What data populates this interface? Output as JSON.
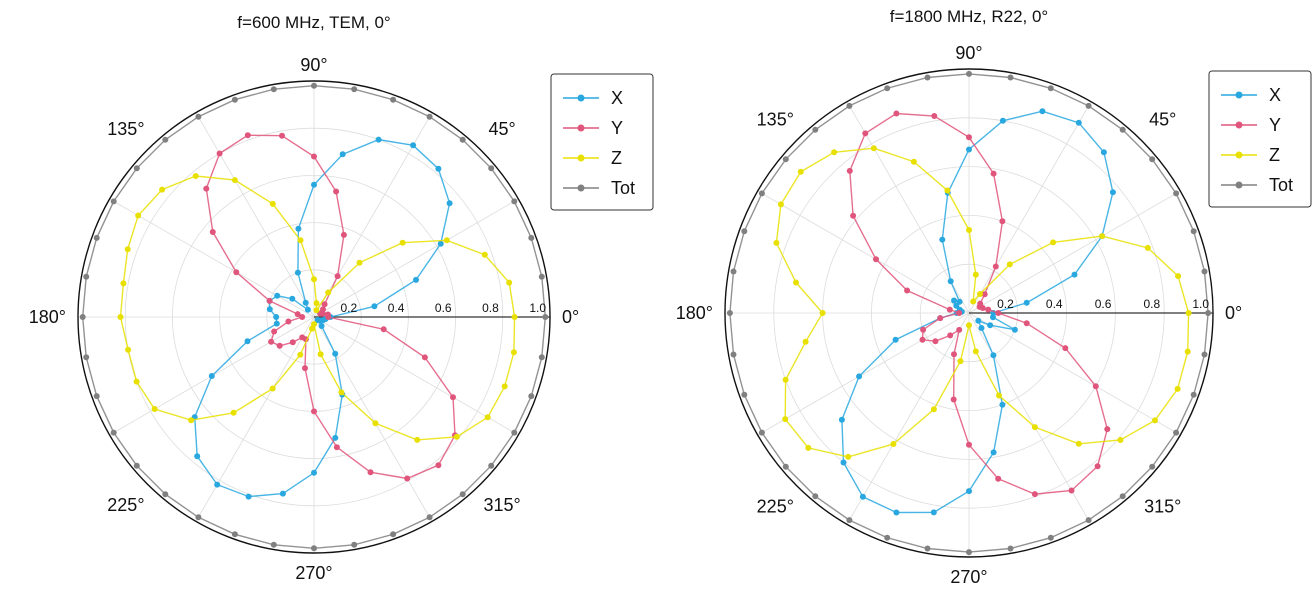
{
  "chart_data": [
    {
      "type": "polar-line",
      "title": "f=600 MHz, TEM, 0°",
      "theta_unit": "deg",
      "angle_ticks": [
        "0°",
        "45°",
        "90°",
        "135°",
        "180°",
        "225°",
        "270°",
        "315°"
      ],
      "r_ticks": [
        "0.2",
        "0.4",
        "0.6",
        "0.8",
        "1.0"
      ],
      "rlim": [
        0,
        1.0
      ],
      "legend_position": "top-right",
      "grid": true,
      "series": [
        {
          "name": "X",
          "color": "#29a8e0",
          "theta": [
            0,
            10,
            20,
            30,
            40,
            50,
            60,
            70,
            80,
            90,
            100,
            110,
            120,
            130,
            140,
            150,
            160,
            170,
            180,
            190,
            200,
            210,
            220,
            230,
            240,
            250,
            260,
            270,
            280,
            290,
            300,
            310,
            320,
            330,
            340,
            350
          ],
          "r": [
            0.07,
            0.26,
            0.46,
            0.62,
            0.75,
            0.82,
            0.84,
            0.8,
            0.7,
            0.56,
            0.38,
            0.2,
            0.07,
            0.04,
            0.12,
            0.18,
            0.2,
            0.19,
            0.16,
            0.16,
            0.3,
            0.5,
            0.66,
            0.77,
            0.82,
            0.81,
            0.76,
            0.66,
            0.52,
            0.35,
            0.18,
            0.05,
            0.02,
            0.03,
            0.04,
            0.05
          ]
        },
        {
          "name": "Y",
          "color": "#e0557b",
          "theta": [
            0,
            10,
            20,
            30,
            40,
            50,
            60,
            70,
            80,
            90,
            100,
            110,
            120,
            130,
            140,
            150,
            160,
            170,
            180,
            190,
            200,
            210,
            220,
            230,
            240,
            250,
            260,
            270,
            280,
            290,
            300,
            310,
            320,
            330,
            340,
            350
          ],
          "r": [
            0.06,
            0.06,
            0.04,
            0.03,
            0.05,
            0.07,
            0.2,
            0.37,
            0.54,
            0.68,
            0.78,
            0.82,
            0.8,
            0.71,
            0.56,
            0.38,
            0.2,
            0.07,
            0.05,
            0.11,
            0.18,
            0.21,
            0.19,
            0.14,
            0.1,
            0.1,
            0.22,
            0.4,
            0.56,
            0.7,
            0.79,
            0.82,
            0.78,
            0.68,
            0.5,
            0.3
          ]
        },
        {
          "name": "Z",
          "color": "#e8e000",
          "theta": [
            0,
            10,
            20,
            30,
            40,
            50,
            60,
            70,
            80,
            90,
            100,
            110,
            120,
            130,
            140,
            150,
            160,
            170,
            180,
            190,
            200,
            210,
            220,
            230,
            240,
            250,
            260,
            270,
            280,
            290,
            300,
            310,
            320,
            330,
            340,
            350
          ],
          "r": [
            0.85,
            0.84,
            0.77,
            0.65,
            0.49,
            0.3,
            0.12,
            0.03,
            0.06,
            0.16,
            0.33,
            0.51,
            0.67,
            0.78,
            0.84,
            0.86,
            0.84,
            0.82,
            0.82,
            0.8,
            0.8,
            0.78,
            0.68,
            0.53,
            0.35,
            0.17,
            0.05,
            0.03,
            0.16,
            0.34,
            0.52,
            0.68,
            0.79,
            0.85,
            0.86,
            0.86
          ]
        },
        {
          "name": "Tot",
          "color": "#808080",
          "theta": [
            0,
            10,
            20,
            30,
            40,
            50,
            60,
            70,
            80,
            90,
            100,
            110,
            120,
            130,
            140,
            150,
            160,
            170,
            180,
            190,
            200,
            210,
            220,
            230,
            240,
            250,
            260,
            270,
            280,
            290,
            300,
            310,
            320,
            330,
            340,
            350
          ],
          "r": [
            0.98,
            0.98,
            0.98,
            0.98,
            0.98,
            0.98,
            0.98,
            0.98,
            0.98,
            0.98,
            0.98,
            0.98,
            0.98,
            0.98,
            0.98,
            0.98,
            0.98,
            0.98,
            0.98,
            0.98,
            0.98,
            0.98,
            0.98,
            0.98,
            0.98,
            0.98,
            0.98,
            0.98,
            0.98,
            0.98,
            0.98,
            0.98,
            0.98,
            0.98,
            0.98,
            0.98
          ]
        }
      ]
    },
    {
      "type": "polar-line",
      "title": "f=1800 MHz, R22, 0°",
      "theta_unit": "deg",
      "angle_ticks": [
        "0°",
        "45°",
        "90°",
        "135°",
        "180°",
        "225°",
        "270°",
        "315°"
      ],
      "r_ticks": [
        "0.2",
        "0.4",
        "0.6",
        "0.8",
        "1.0"
      ],
      "rlim": [
        0,
        1.0
      ],
      "legend_position": "top-right",
      "grid": true,
      "series": [
        {
          "name": "X",
          "color": "#29a8e0",
          "theta": [
            0,
            10,
            20,
            30,
            40,
            50,
            60,
            70,
            80,
            90,
            100,
            110,
            120,
            130,
            140,
            150,
            160,
            170,
            180,
            190,
            200,
            210,
            220,
            230,
            240,
            250,
            260,
            270,
            280,
            290,
            300,
            310,
            320,
            330,
            340,
            350
          ],
          "r": [
            0.1,
            0.24,
            0.46,
            0.63,
            0.77,
            0.86,
            0.9,
            0.88,
            0.8,
            0.67,
            0.5,
            0.32,
            0.15,
            0.06,
            0.08,
            0.06,
            0.04,
            0.03,
            0.05,
            0.12,
            0.32,
            0.52,
            0.68,
            0.8,
            0.87,
            0.87,
            0.83,
            0.73,
            0.58,
            0.4,
            0.2,
            0.08,
            0.05,
            0.1,
            0.2,
            0.1
          ]
        },
        {
          "name": "Y",
          "color": "#e0557b",
          "theta": [
            0,
            10,
            20,
            30,
            40,
            50,
            60,
            70,
            80,
            90,
            100,
            110,
            120,
            130,
            140,
            150,
            160,
            170,
            180,
            190,
            200,
            210,
            220,
            230,
            240,
            250,
            260,
            270,
            280,
            290,
            300,
            310,
            320,
            330,
            340,
            350
          ],
          "r": [
            0.12,
            0.08,
            0.06,
            0.05,
            0.06,
            0.1,
            0.22,
            0.4,
            0.58,
            0.72,
            0.82,
            0.87,
            0.85,
            0.76,
            0.62,
            0.44,
            0.27,
            0.08,
            0.04,
            0.12,
            0.2,
            0.22,
            0.18,
            0.12,
            0.08,
            0.18,
            0.36,
            0.54,
            0.69,
            0.79,
            0.84,
            0.82,
            0.74,
            0.6,
            0.42,
            0.24
          ]
        },
        {
          "name": "Z",
          "color": "#e8e000",
          "theta": [
            0,
            10,
            20,
            30,
            40,
            50,
            60,
            70,
            80,
            90,
            100,
            110,
            120,
            130,
            140,
            150,
            160,
            170,
            180,
            190,
            200,
            210,
            220,
            230,
            240,
            250,
            260,
            270,
            280,
            290,
            300,
            310,
            320,
            330,
            340,
            350
          ],
          "r": [
            0.9,
            0.87,
            0.78,
            0.63,
            0.45,
            0.26,
            0.09,
            0.05,
            0.16,
            0.34,
            0.51,
            0.66,
            0.78,
            0.86,
            0.9,
            0.89,
            0.84,
            0.72,
            0.6,
            0.68,
            0.8,
            0.87,
            0.86,
            0.77,
            0.62,
            0.42,
            0.2,
            0.05,
            0.16,
            0.36,
            0.54,
            0.7,
            0.81,
            0.88,
            0.91,
            0.91
          ]
        },
        {
          "name": "Tot",
          "color": "#808080",
          "theta": [
            0,
            10,
            20,
            30,
            40,
            50,
            60,
            70,
            80,
            90,
            100,
            110,
            120,
            130,
            140,
            150,
            160,
            170,
            180,
            190,
            200,
            210,
            220,
            230,
            240,
            250,
            260,
            270,
            280,
            290,
            300,
            310,
            320,
            330,
            340,
            350
          ],
          "r": [
            0.98,
            0.98,
            0.98,
            0.98,
            0.98,
            0.98,
            0.98,
            0.98,
            0.98,
            0.98,
            0.98,
            0.98,
            0.98,
            0.98,
            0.98,
            0.98,
            0.98,
            0.98,
            0.98,
            0.98,
            0.98,
            0.98,
            0.98,
            0.98,
            0.98,
            0.98,
            0.98,
            0.98,
            0.98,
            0.98,
            0.98,
            0.98,
            0.98,
            0.98,
            0.98,
            0.98
          ]
        }
      ]
    }
  ]
}
